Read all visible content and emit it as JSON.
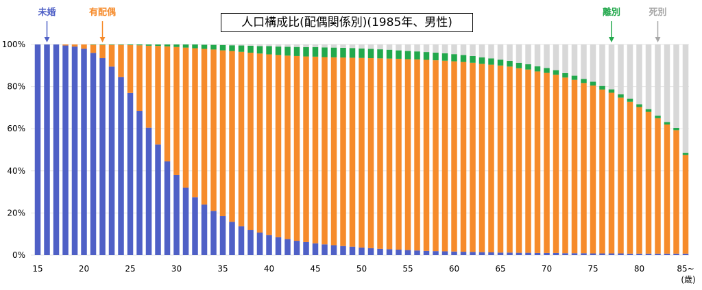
{
  "colors": {
    "unmarried": "#4f60c6",
    "married": "#f68b2b",
    "divorced": "#22a84c",
    "widowed": "#d8d8d8"
  },
  "chart_data": {
    "type": "bar",
    "stacked": true,
    "percent": true,
    "title": "人口構成比(配偶関係別)(1985年、男性)",
    "xlabel": "(歳)",
    "ylabel": "",
    "ylim": [
      0,
      100
    ],
    "y_ticks": [
      "0%",
      "20%",
      "40%",
      "60%",
      "80%",
      "100%"
    ],
    "x_tick_labels": [
      "15",
      "20",
      "25",
      "30",
      "35",
      "40",
      "45",
      "50",
      "55",
      "60",
      "65",
      "70",
      "75",
      "80",
      "85~"
    ],
    "categories": [
      15,
      16,
      17,
      18,
      19,
      20,
      21,
      22,
      23,
      24,
      25,
      26,
      27,
      28,
      29,
      30,
      31,
      32,
      33,
      34,
      35,
      36,
      37,
      38,
      39,
      40,
      41,
      42,
      43,
      44,
      45,
      46,
      47,
      48,
      49,
      50,
      51,
      52,
      53,
      54,
      55,
      56,
      57,
      58,
      59,
      60,
      61,
      62,
      63,
      64,
      65,
      66,
      67,
      68,
      69,
      70,
      71,
      72,
      73,
      74,
      75,
      76,
      77,
      78,
      79,
      80,
      81,
      82,
      83,
      84,
      85
    ],
    "series": [
      {
        "name": "未婚",
        "values": [
          100,
          100,
          100,
          99.5,
          99,
          98,
          96,
          93.5,
          89.5,
          84.5,
          77,
          68.5,
          60.5,
          52.5,
          44.5,
          38,
          32,
          27.5,
          24,
          21,
          18.5,
          15.8,
          13.7,
          12,
          10.7,
          9.5,
          8.5,
          7.6,
          6.8,
          6.2,
          5.6,
          5.1,
          4.7,
          4.3,
          4,
          3.6,
          3.3,
          3,
          2.8,
          2.6,
          2.4,
          2.2,
          2,
          1.9,
          1.8,
          1.7,
          1.6,
          1.5,
          1.4,
          1.3,
          1.2,
          1.2,
          1.1,
          1.1,
          1,
          1,
          1,
          0.9,
          0.9,
          0.9,
          0.8,
          0.8,
          0.8,
          0.8,
          0.7,
          0.7,
          0.7,
          0.7,
          0.7,
          0.7,
          0.7
        ]
      },
      {
        "name": "有配偶",
        "values": [
          0,
          0,
          0,
          0.5,
          1,
          2,
          3.9,
          6.3,
          10.3,
          15.3,
          22.7,
          31.1,
          38.9,
          46.8,
          54.6,
          60.8,
          66.5,
          70.7,
          73.9,
          76.6,
          78.7,
          81.1,
          82.8,
          84.1,
          85,
          85.8,
          86.5,
          87.1,
          87.7,
          88.1,
          88.6,
          88.9,
          89.2,
          89.5,
          89.7,
          90,
          90.2,
          90.4,
          90.5,
          90.6,
          90.6,
          90.7,
          90.7,
          90.6,
          90.5,
          90.3,
          90.1,
          89.8,
          89.4,
          89.1,
          88.8,
          88.3,
          87.6,
          87,
          86.2,
          85.5,
          84.6,
          83.4,
          82.3,
          80.8,
          79.7,
          77.8,
          76.3,
          74,
          72.1,
          69.6,
          67.3,
          64.3,
          61.3,
          58.6,
          46.8
        ]
      },
      {
        "name": "離別",
        "values": [
          0,
          0,
          0,
          0,
          0,
          0,
          0.1,
          0.2,
          0.2,
          0.2,
          0.3,
          0.4,
          0.6,
          0.7,
          0.9,
          1.2,
          1.5,
          1.8,
          2,
          2.2,
          2.5,
          2.7,
          3,
          3.3,
          3.5,
          3.9,
          4,
          4.2,
          4.3,
          4.4,
          4.5,
          4.6,
          4.6,
          4.6,
          4.6,
          4.5,
          4.4,
          4.3,
          4.2,
          4,
          3.9,
          3.8,
          3.7,
          3.6,
          3.5,
          3.4,
          3.3,
          3.2,
          3.1,
          3,
          2.8,
          2.7,
          2.6,
          2.5,
          2.4,
          2.3,
          2.2,
          2.1,
          2,
          1.9,
          1.8,
          1.7,
          1.6,
          1.5,
          1.4,
          1.3,
          1.3,
          1.2,
          1.2,
          1.1,
          1
        ]
      },
      {
        "name": "死別",
        "values": [
          0,
          0,
          0,
          0,
          0,
          0,
          0,
          0,
          0,
          0,
          0,
          0,
          0,
          0,
          0,
          0,
          0,
          0,
          0.1,
          0.2,
          0.3,
          0.4,
          0.5,
          0.6,
          0.8,
          0.8,
          1,
          1.1,
          1.2,
          1.3,
          1.3,
          1.4,
          1.5,
          1.6,
          1.7,
          1.9,
          2.1,
          2.3,
          2.5,
          2.8,
          3.1,
          3.3,
          3.6,
          3.9,
          4.2,
          4.6,
          5,
          5.5,
          6.1,
          6.6,
          7.2,
          7.8,
          8.7,
          9.4,
          10.4,
          11.2,
          12.2,
          13.6,
          14.8,
          16.4,
          17.7,
          19.7,
          21.3,
          23.7,
          25.8,
          28.4,
          30.7,
          33.8,
          36.8,
          39.6,
          51.5
        ]
      }
    ],
    "legend": [
      {
        "label": "未婚",
        "at_age": 16
      },
      {
        "label": "有配偶",
        "at_age": 22
      },
      {
        "label": "離別",
        "at_age": 77
      },
      {
        "label": "死別",
        "at_age": 82
      }
    ]
  }
}
